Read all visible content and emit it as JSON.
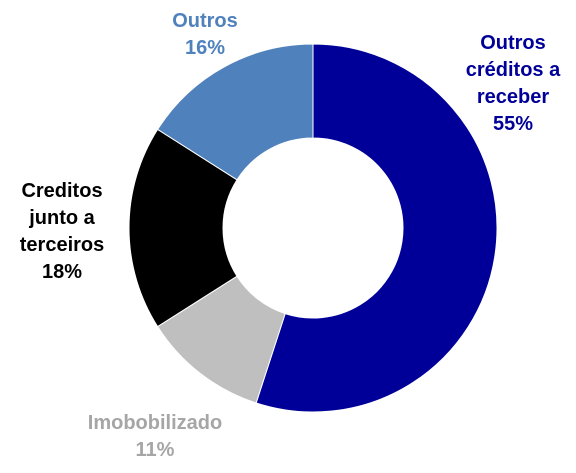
{
  "chart_data": {
    "type": "donut",
    "categories": [
      "Outros créditos a receber",
      "Imobobilizado",
      "Creditos junto a terceiros",
      "Outros"
    ],
    "values": [
      55,
      11,
      18,
      16
    ],
    "value_labels": [
      "55%",
      "11%",
      "18%",
      "16%"
    ],
    "colors": [
      "#000099",
      "#bfbfbf",
      "#000000",
      "#4f81bd"
    ]
  }
}
